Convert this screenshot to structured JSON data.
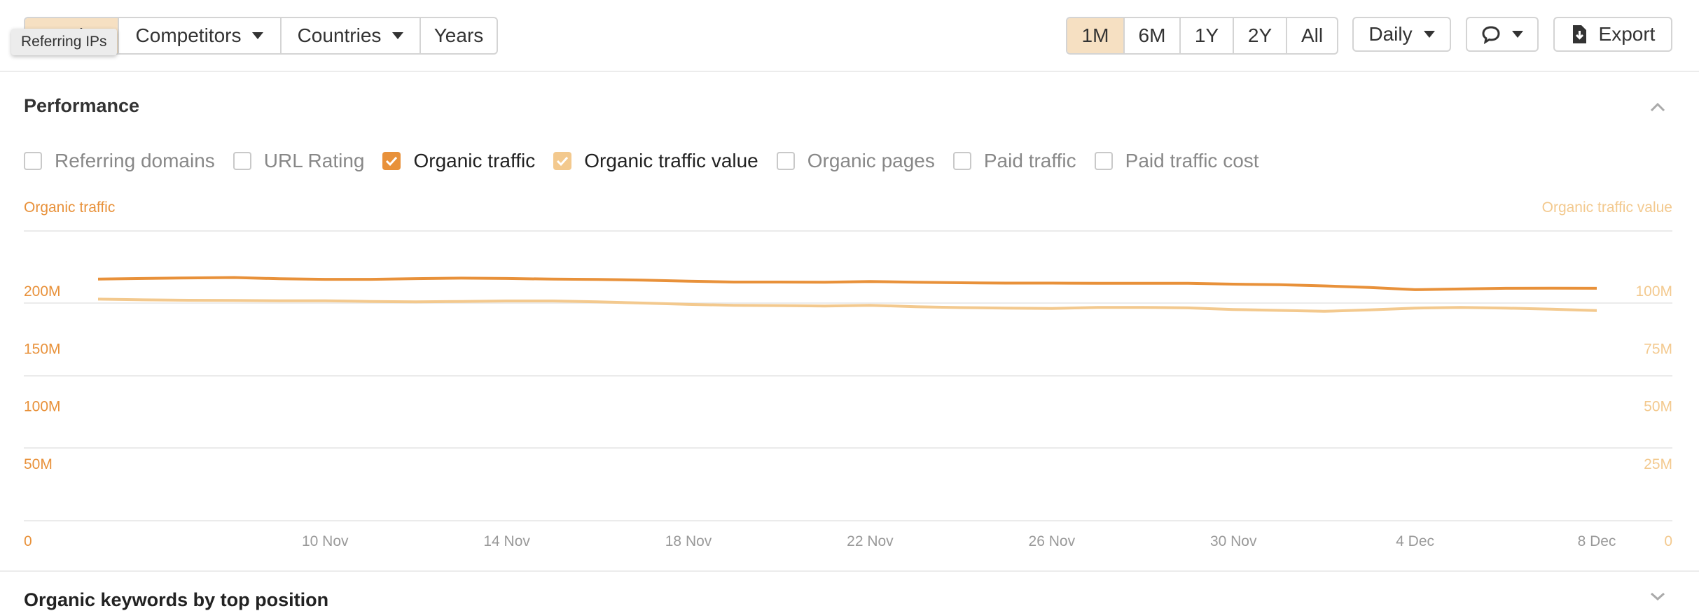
{
  "toolbar": {
    "left_group": [
      {
        "label": "Metrics",
        "active": true
      },
      {
        "label": "Competitors",
        "dropdown": true
      },
      {
        "label": "Countries",
        "dropdown": true
      },
      {
        "label": "Years"
      }
    ],
    "tooltip": "Referring IPs",
    "ranges": [
      "1M",
      "6M",
      "1Y",
      "2Y",
      "All"
    ],
    "active_range": "1M",
    "interval": "Daily",
    "export_label": "Export"
  },
  "panel": {
    "title": "Performance",
    "toggles": [
      {
        "label": "Referring domains",
        "checked": false
      },
      {
        "label": "URL Rating",
        "checked": false
      },
      {
        "label": "Organic traffic",
        "checked": true,
        "color": "#e8913a"
      },
      {
        "label": "Organic traffic value",
        "checked": true,
        "color": "#f3c98e"
      },
      {
        "label": "Organic pages",
        "checked": false
      },
      {
        "label": "Paid traffic",
        "checked": false
      },
      {
        "label": "Paid traffic cost",
        "checked": false
      }
    ],
    "next_section_title": "Organic keywords by top position"
  },
  "colors": {
    "organic_traffic": "#e8913a",
    "organic_traffic_value": "#f3c98e",
    "accent_bg": "#f6e0c2"
  },
  "chart_data": {
    "type": "line",
    "left_axis_label": "Organic traffic",
    "right_axis_label": "Organic traffic value",
    "x": [
      "5 Nov",
      "6 Nov",
      "7 Nov",
      "8 Nov",
      "9 Nov",
      "10 Nov",
      "11 Nov",
      "12 Nov",
      "13 Nov",
      "14 Nov",
      "15 Nov",
      "16 Nov",
      "17 Nov",
      "18 Nov",
      "19 Nov",
      "20 Nov",
      "21 Nov",
      "22 Nov",
      "23 Nov",
      "24 Nov",
      "25 Nov",
      "26 Nov",
      "27 Nov",
      "28 Nov",
      "29 Nov",
      "30 Nov",
      "1 Dec",
      "2 Dec",
      "3 Dec",
      "4 Dec",
      "5 Dec",
      "6 Dec",
      "7 Dec",
      "8 Dec"
    ],
    "x_ticks": [
      "10 Nov",
      "14 Nov",
      "18 Nov",
      "22 Nov",
      "26 Nov",
      "30 Nov",
      "4 Dec",
      "8 Dec"
    ],
    "left_ticks": [
      "0",
      "50M",
      "100M",
      "150M",
      "200M"
    ],
    "right_ticks": [
      "0",
      "25M",
      "50M",
      "75M",
      "100M"
    ],
    "left_ylim": [
      0,
      250000000
    ],
    "right_ylim": [
      0,
      125000000
    ],
    "series": [
      {
        "name": "Organic traffic",
        "axis": "left",
        "color": "#e8913a",
        "values": [
          210000000,
          210500000,
          211000000,
          211400000,
          210300000,
          209800000,
          209800000,
          210400000,
          210800000,
          210500000,
          210000000,
          209700000,
          209100000,
          208200000,
          207400000,
          207400000,
          207300000,
          207900000,
          207300000,
          206800000,
          206500000,
          206500000,
          206300000,
          206300000,
          206300000,
          205600000,
          205100000,
          204100000,
          202700000,
          200800000,
          201400000,
          202000000,
          202100000,
          202000000
        ]
      },
      {
        "name": "Organic traffic value",
        "axis": "right",
        "color": "#f3c98e",
        "values": [
          96300000,
          96000000,
          95800000,
          95700000,
          95600000,
          95600000,
          95300000,
          95100000,
          95300000,
          95500000,
          95500000,
          95100000,
          94600000,
          94000000,
          93600000,
          93500000,
          93300000,
          93600000,
          93000000,
          92600000,
          92400000,
          92200000,
          92700000,
          92700000,
          92500000,
          91800000,
          91400000,
          91000000,
          91600000,
          92400000,
          92700000,
          92400000,
          91900000,
          91300000
        ]
      }
    ],
    "grid": true,
    "legend": "none"
  }
}
